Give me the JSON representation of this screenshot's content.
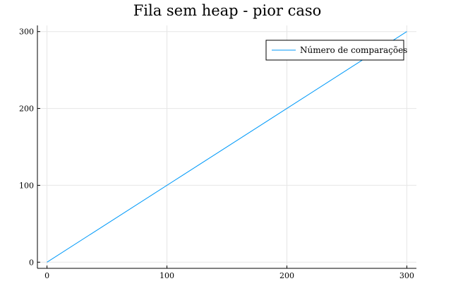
{
  "chart_data": {
    "type": "line",
    "title": "Fila sem heap - pior caso",
    "xlabel": "",
    "ylabel": "",
    "xlim": [
      -8,
      308
    ],
    "ylim": [
      -8,
      308
    ],
    "xticks": [
      0,
      100,
      200,
      300
    ],
    "yticks": [
      0,
      100,
      200,
      300
    ],
    "grid": true,
    "legend": {
      "position": "top-right"
    },
    "series": [
      {
        "name": "Número de comparações",
        "color": "#009af9",
        "x": [
          0,
          300
        ],
        "y": [
          0,
          300
        ]
      }
    ]
  }
}
